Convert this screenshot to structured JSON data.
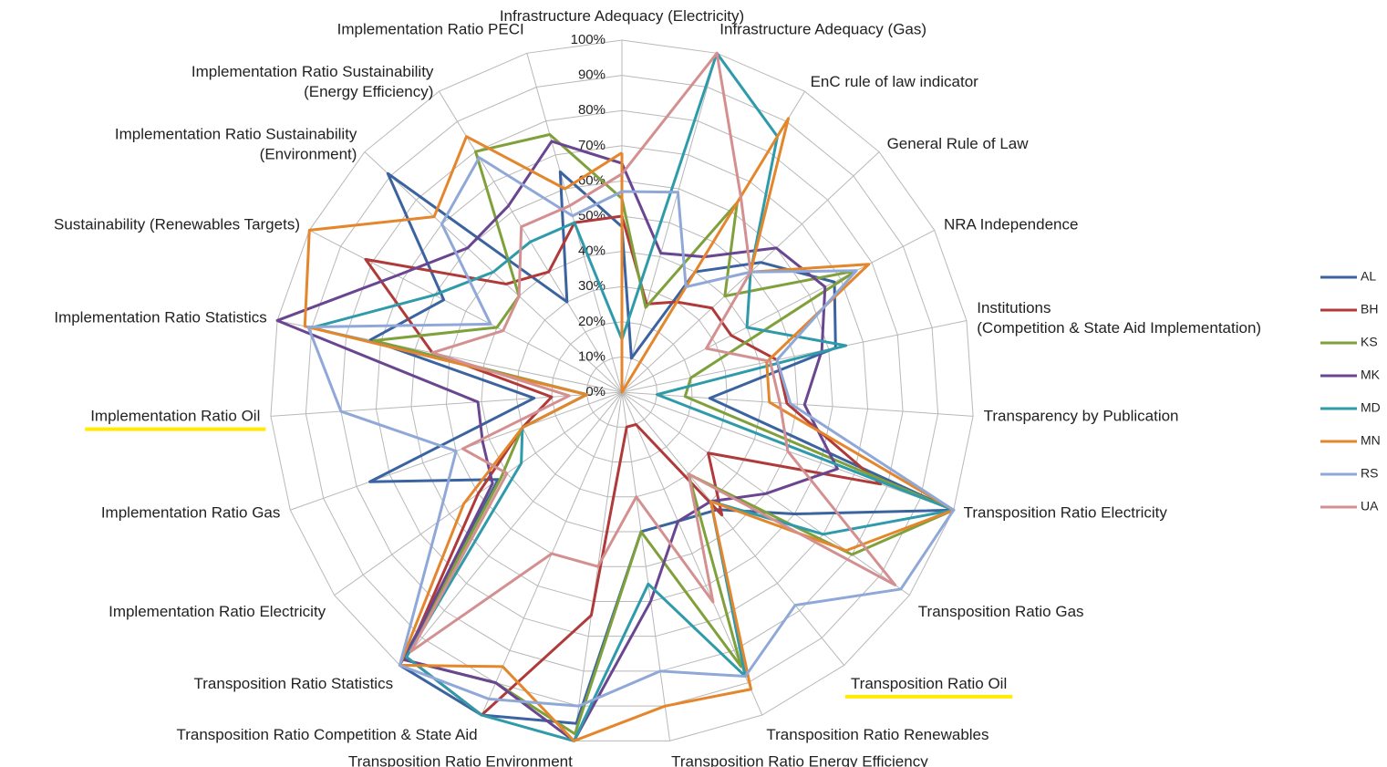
{
  "chart_data": {
    "type": "radar",
    "categories": [
      "Infrastructure Adequacy (Electricity)",
      "Infrastructure Adequacy (Gas)",
      "EnC rule of law indicator",
      "General Rule of Law",
      "NRA Independence",
      "Institutions (Competition & State Aid Implementation)",
      "Transparency by Publication",
      "Transposition Ratio Electricity",
      "Transposition Ratio Gas",
      "Transposition Ratio Oil",
      "Transposition Ratio Renewables",
      "Transposition Ratio Energy Efficiency",
      "Transposition Ratio Environment",
      "Transposition Ratio Competition & State Aid",
      "Transposition Ratio Statistics",
      "Implementation Ratio Electricity",
      "Implementation Ratio Gas",
      "Implementation Ratio Oil",
      "Implementation Ratio Statistics",
      "Sustainability (Renewables  Targets)",
      "Implementation Ratio Sustainability (Environment)",
      "Implementation Ratio Sustainability (Energy Efficiency)",
      "Implementation Ratio PECI"
    ],
    "series": [
      {
        "name": "AL",
        "color": "#3a63a0",
        "values": [
          47,
          10,
          40,
          54,
          68,
          62,
          25,
          100,
          60,
          43,
          40,
          40,
          95,
          100,
          100,
          43,
          76,
          25,
          73,
          57,
          91,
          30,
          65
        ]
      },
      {
        "name": "BH",
        "color": "#b03a3a",
        "values": [
          50,
          26,
          30,
          35,
          35,
          45,
          47,
          78,
          30,
          45,
          10,
          10,
          64,
          100,
          97,
          50,
          30,
          20,
          55,
          82,
          45,
          40,
          50
        ]
      },
      {
        "name": "KS",
        "color": "#7fa03a",
        "values": [
          55,
          25,
          63,
          40,
          75,
          20,
          18,
          100,
          80,
          30,
          85,
          40,
          98,
          90,
          98,
          42,
          30,
          10,
          72,
          40,
          40,
          80,
          76
        ]
      },
      {
        "name": "MK",
        "color": "#6a4590",
        "values": [
          65,
          41,
          45,
          60,
          65,
          58,
          52,
          65,
          50,
          40,
          40,
          60,
          100,
          90,
          98,
          45,
          42,
          41,
          100,
          72,
          60,
          62,
          74
        ]
      },
      {
        "name": "MD",
        "color": "#2e9aaa",
        "values": [
          15,
          100,
          85,
          50,
          40,
          65,
          10,
          100,
          70,
          40,
          88,
          55,
          100,
          100,
          97,
          35,
          30,
          10,
          90,
          60,
          50,
          50,
          50
        ]
      },
      {
        "name": "MN",
        "color": "#e4862c",
        "values": [
          68,
          0,
          91,
          50,
          79,
          42,
          42,
          100,
          78,
          40,
          92,
          90,
          100,
          85,
          100,
          55,
          30,
          10,
          92,
          100,
          73,
          85,
          60
        ]
      },
      {
        "name": "RS",
        "color": "#8fa8d8",
        "values": [
          57,
          59,
          35,
          50,
          75,
          45,
          48,
          100,
          97,
          78,
          88,
          80,
          90,
          95,
          100,
          64,
          50,
          80,
          91,
          42,
          70,
          78,
          52
        ]
      },
      {
        "name": "UA",
        "color": "#d49090",
        "values": [
          62,
          100,
          65,
          50,
          27,
          43,
          45,
          50,
          95,
          30,
          65,
          30,
          50,
          50,
          95,
          40,
          48,
          15,
          55,
          38,
          40,
          55,
          55
        ]
      }
    ],
    "ylim": [
      0,
      100
    ],
    "yticks": [
      {
        "value": 0,
        "label": "0%"
      },
      {
        "value": 10,
        "label": "10%"
      },
      {
        "value": 20,
        "label": "20%"
      },
      {
        "value": 30,
        "label": "30%"
      },
      {
        "value": 40,
        "label": "40%"
      },
      {
        "value": 50,
        "label": "50%"
      },
      {
        "value": 60,
        "label": "60%"
      },
      {
        "value": 70,
        "label": "70%"
      },
      {
        "value": 80,
        "label": "80%"
      },
      {
        "value": 90,
        "label": "90%"
      },
      {
        "value": 100,
        "label": "100%"
      }
    ],
    "grid": true,
    "legend": "right"
  }
}
